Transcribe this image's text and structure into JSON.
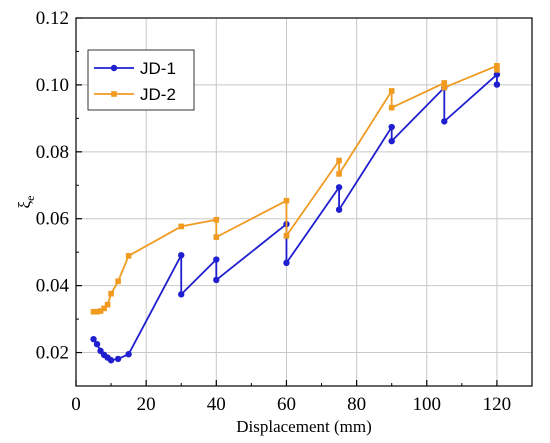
{
  "chart_data": {
    "type": "line",
    "title": "",
    "xlabel": "Displacement (mm)",
    "ylabel_main": "ξ",
    "ylabel_sub": "e",
    "xlim": [
      0,
      130
    ],
    "ylim": [
      0.01,
      0.12
    ],
    "x_ticks": [
      0,
      20,
      40,
      60,
      80,
      100,
      120
    ],
    "x_tick_labels": [
      "0",
      "20",
      "40",
      "60",
      "80",
      "100",
      "120"
    ],
    "y_ticks": [
      0.02,
      0.04,
      0.06,
      0.08,
      0.1,
      0.12
    ],
    "y_tick_labels": [
      "0.02",
      "0.04",
      "0.06",
      "0.08",
      "0.10",
      "0.12"
    ],
    "grid": true,
    "legend_position": "top-left",
    "series": [
      {
        "name": "JD-1",
        "color": "#1f1fcf",
        "marker": "circle",
        "x": [
          5,
          6,
          7,
          8,
          9,
          10,
          12,
          15,
          30,
          30,
          40,
          40,
          60,
          60,
          75,
          75,
          90,
          90,
          105,
          105,
          120,
          120
        ],
        "y": [
          0.024,
          0.0225,
          0.0205,
          0.0193,
          0.0185,
          0.0177,
          0.0181,
          0.0195,
          0.0491,
          0.0374,
          0.0478,
          0.0417,
          0.0584,
          0.0468,
          0.0694,
          0.0627,
          0.0874,
          0.0832,
          0.0992,
          0.0891,
          0.1031,
          0.1001
        ]
      },
      {
        "name": "JD-2",
        "color": "#f09a20",
        "marker": "square",
        "x": [
          5,
          6,
          7,
          8,
          9,
          10,
          12,
          15,
          30,
          40,
          40,
          60,
          60,
          75,
          75,
          90,
          90,
          105,
          105,
          120,
          120
        ],
        "y": [
          0.0322,
          0.0322,
          0.0324,
          0.0332,
          0.0343,
          0.0376,
          0.0413,
          0.0489,
          0.0577,
          0.0597,
          0.0545,
          0.0654,
          0.0549,
          0.0774,
          0.0734,
          0.0982,
          0.0932,
          0.1006,
          0.0992,
          0.1057,
          0.1045
        ]
      }
    ]
  }
}
